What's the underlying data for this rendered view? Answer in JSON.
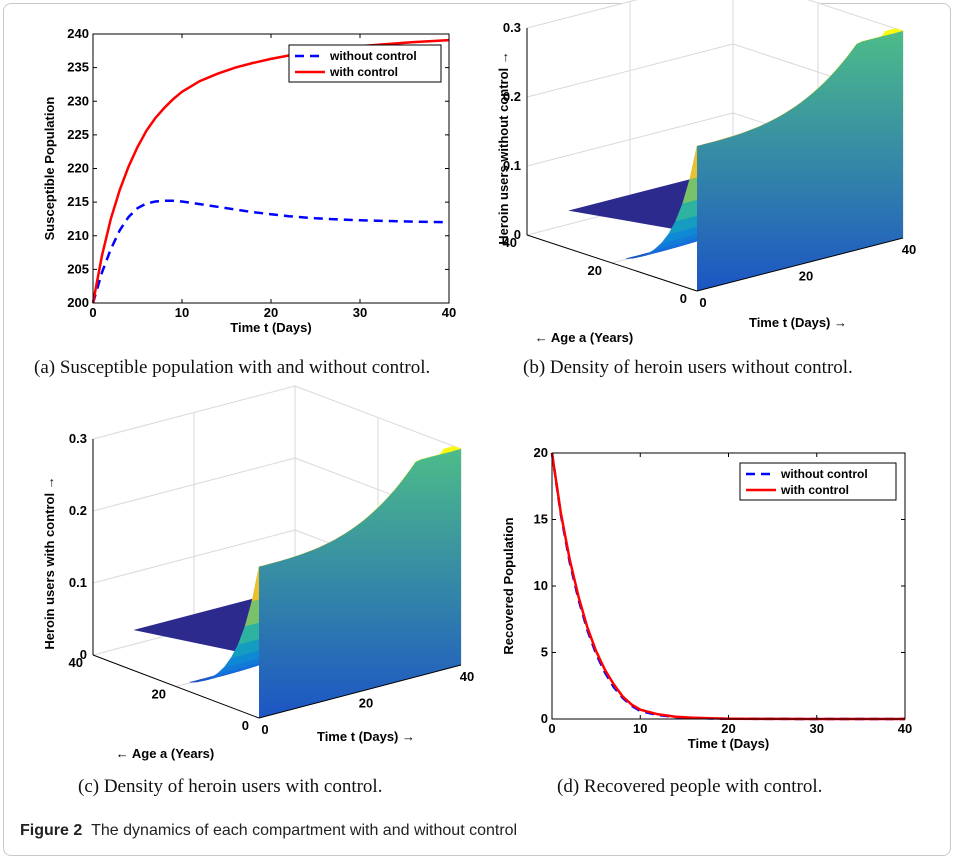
{
  "figure": {
    "label": "Figure 2",
    "text": "The dynamics of each compartment with and without control"
  },
  "captions": {
    "a": "(a) Susceptible population with and without control.",
    "b": "(b) Density of heroin users without control.",
    "c": "(c) Density of heroin users with control.",
    "d": "(d) Recovered people with control."
  },
  "colors": {
    "without_control": "#0000ff",
    "with_control": "#ff0000",
    "surface_low": "#3b4cc0",
    "surface_colormap": "parula"
  },
  "chart_data": [
    {
      "id": "a",
      "type": "line",
      "xlabel": "Time t (Days)",
      "ylabel": "Susceptible Population",
      "xlim": [
        0,
        40
      ],
      "ylim": [
        200,
        240
      ],
      "xticks": [
        0,
        10,
        20,
        30,
        40
      ],
      "yticks": [
        200,
        205,
        210,
        215,
        220,
        225,
        230,
        235,
        240
      ],
      "legend_position": "top-right",
      "series": [
        {
          "name": "without control",
          "style": "dashed",
          "x": [
            0,
            1,
            2,
            3,
            4,
            5,
            6,
            7,
            8,
            9,
            10,
            12,
            14,
            16,
            18,
            20,
            22,
            25,
            28,
            30,
            33,
            36,
            40
          ],
          "y": [
            200,
            204.5,
            208,
            210.8,
            212.8,
            214.1,
            214.8,
            215.1,
            215.2,
            215.2,
            215.1,
            214.7,
            214.3,
            213.9,
            213.5,
            213.2,
            212.9,
            212.6,
            212.4,
            212.3,
            212.2,
            212.1,
            212.0
          ]
        },
        {
          "name": "with control",
          "style": "solid",
          "x": [
            0,
            1,
            2,
            3,
            4,
            5,
            6,
            7,
            8,
            9,
            10,
            12,
            14,
            16,
            18,
            20,
            22,
            25,
            28,
            30,
            33,
            36,
            40
          ],
          "y": [
            200,
            207,
            212.5,
            216.8,
            220.3,
            223.2,
            225.6,
            227.5,
            229.0,
            230.3,
            231.4,
            233.0,
            234.1,
            235.0,
            235.7,
            236.3,
            236.8,
            237.4,
            237.9,
            238.2,
            238.5,
            238.8,
            239.1
          ]
        }
      ]
    },
    {
      "id": "b",
      "type": "surface",
      "xlabel": "Time t (Days)",
      "ylabel": "Age a (Years)",
      "zlabel": "Heroin users without control",
      "x_range": [
        0,
        40
      ],
      "y_range": [
        0,
        40
      ],
      "zlim": [
        0,
        0.3
      ],
      "xticks": [
        0,
        20,
        40
      ],
      "yticks": [
        0,
        20,
        40
      ],
      "zticks": [
        0,
        0.1,
        0.2,
        0.3
      ]
    },
    {
      "id": "c",
      "type": "surface",
      "xlabel": "Time t (Days)",
      "ylabel": "Age a (Years)",
      "zlabel": "Heroin users with control",
      "x_range": [
        0,
        40
      ],
      "y_range": [
        0,
        40
      ],
      "zlim": [
        0,
        0.3
      ],
      "xticks": [
        0,
        20,
        40
      ],
      "yticks": [
        0,
        20,
        40
      ],
      "zticks": [
        0,
        0.1,
        0.2,
        0.3
      ]
    },
    {
      "id": "d",
      "type": "line",
      "xlabel": "Time t (Days)",
      "ylabel": "Recovered Population",
      "xlim": [
        0,
        40
      ],
      "ylim": [
        0,
        20
      ],
      "xticks": [
        0,
        10,
        20,
        30,
        40
      ],
      "yticks": [
        0,
        5,
        10,
        15,
        20
      ],
      "legend_position": "top-right",
      "series": [
        {
          "name": "without control",
          "style": "dashed",
          "x": [
            0,
            1,
            2,
            3,
            4,
            5,
            6,
            7,
            8,
            9,
            10,
            12,
            14,
            16,
            18,
            20,
            25,
            30,
            35,
            40
          ],
          "y": [
            20,
            15.4,
            11.8,
            9.0,
            6.7,
            4.9,
            3.5,
            2.4,
            1.6,
            1.0,
            0.6,
            0.3,
            0.15,
            0.08,
            0.04,
            0.02,
            0.01,
            0,
            0,
            0
          ]
        },
        {
          "name": "with control",
          "style": "solid",
          "x": [
            0,
            1,
            2,
            3,
            4,
            5,
            6,
            7,
            8,
            9,
            10,
            12,
            14,
            16,
            18,
            20,
            25,
            30,
            35,
            40
          ],
          "y": [
            20,
            15.5,
            12.0,
            9.2,
            6.9,
            5.1,
            3.7,
            2.6,
            1.7,
            1.1,
            0.7,
            0.35,
            0.17,
            0.09,
            0.05,
            0.02,
            0.01,
            0,
            0,
            0
          ]
        }
      ]
    }
  ]
}
